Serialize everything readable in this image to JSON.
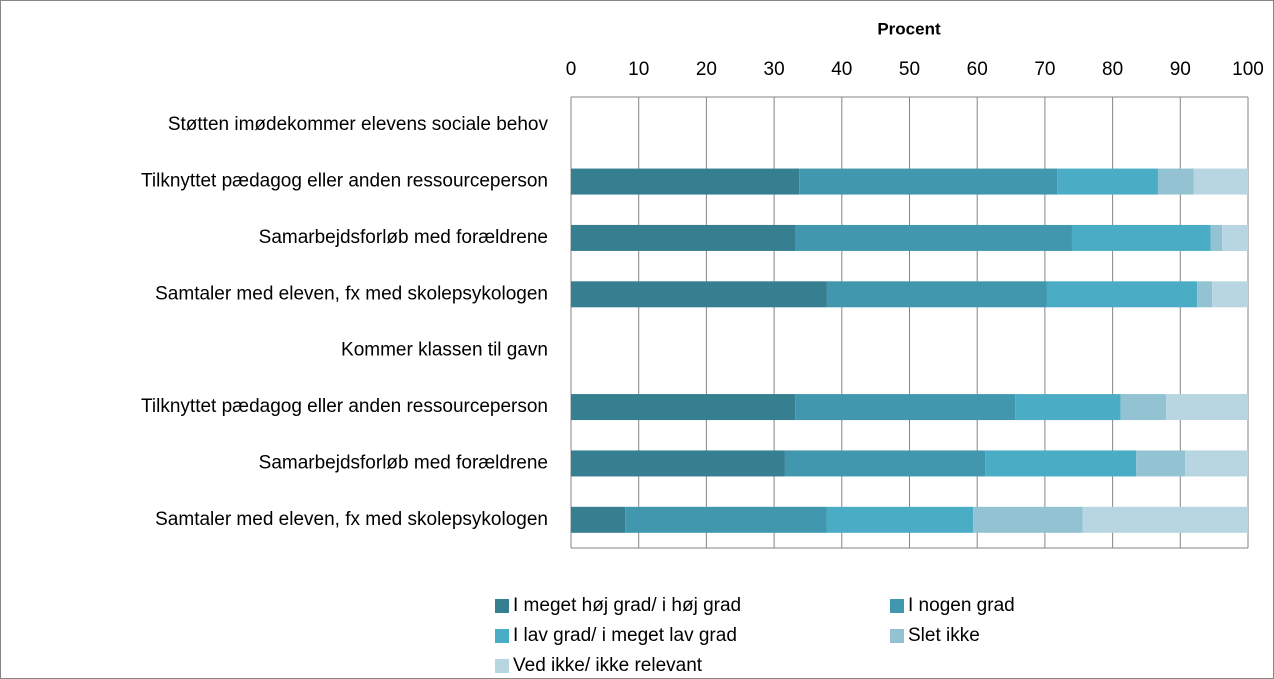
{
  "chart_data": {
    "type": "bar",
    "orientation": "horizontal",
    "stacked": true,
    "xlabel": "Procent",
    "categories": [
      "Støtten imødekommer elevens sociale behov",
      "Tilknyttet pædagog eller anden ressourceperson",
      "Samarbejdsforløb med forældrene",
      "Samtaler med eleven, fx med skolepsykologen",
      "Kommer klassen til gavn",
      "Tilknyttet pædagog eller anden ressourceperson",
      "Samarbejdsforløb med forældrene",
      "Samtaler med eleven, fx med skolepsykologen"
    ],
    "series": [
      {
        "name": "I meget høj grad/ i høj grad",
        "color": "#357f91",
        "values": [
          null,
          33.7,
          33.2,
          37.8,
          null,
          33.1,
          31.6,
          8.0
        ]
      },
      {
        "name": "I nogen grad",
        "color": "#4198ae",
        "values": [
          null,
          38.1,
          40.8,
          32.5,
          null,
          32.5,
          29.6,
          29.8
        ]
      },
      {
        "name": "I lav grad/ i meget lav grad",
        "color": "#4bacc6",
        "values": [
          null,
          14.9,
          20.5,
          22.2,
          null,
          15.6,
          22.3,
          21.6
        ]
      },
      {
        "name": "Slet ikke",
        "color": "#93c3d3",
        "values": [
          null,
          5.3,
          1.7,
          2.2,
          null,
          6.7,
          7.2,
          16.2
        ]
      },
      {
        "name": "Ved ikke/ ikke relevant",
        "color": "#b7d6e1",
        "values": [
          null,
          8.0,
          3.8,
          5.3,
          null,
          12.1,
          9.3,
          24.4
        ]
      }
    ],
    "xlim": [
      0,
      100
    ],
    "xticks": [
      0,
      10,
      20,
      30,
      40,
      50,
      60,
      70,
      80,
      90,
      100
    ],
    "grid": true
  }
}
